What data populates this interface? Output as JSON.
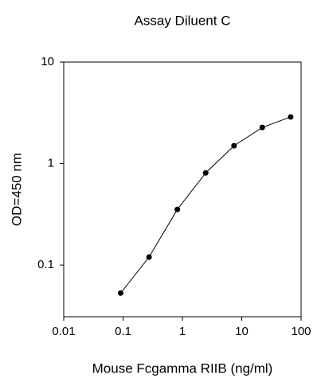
{
  "chart_data": {
    "type": "line",
    "title": "Assay Diluent C",
    "x_label": "Mouse Fcgamma RIIB (ng/ml)",
    "y_label": "OD=450 nm",
    "x": [
      0.091,
      0.274,
      0.823,
      2.47,
      7.41,
      22.2,
      66.7
    ],
    "series": [
      {
        "color": "#000000",
        "values": [
          0.053,
          0.12,
          0.354,
          0.81,
          1.5,
          2.27,
          2.88
        ]
      }
    ],
    "xlim": [
      0.01,
      100
    ],
    "xticks": [
      0.01,
      0.1,
      1,
      10,
      100
    ],
    "ylim": [
      0.031,
      10
    ],
    "yticks": [
      0.1,
      1,
      10
    ],
    "xscale": "log",
    "yscale": "log",
    "grid": false
  }
}
